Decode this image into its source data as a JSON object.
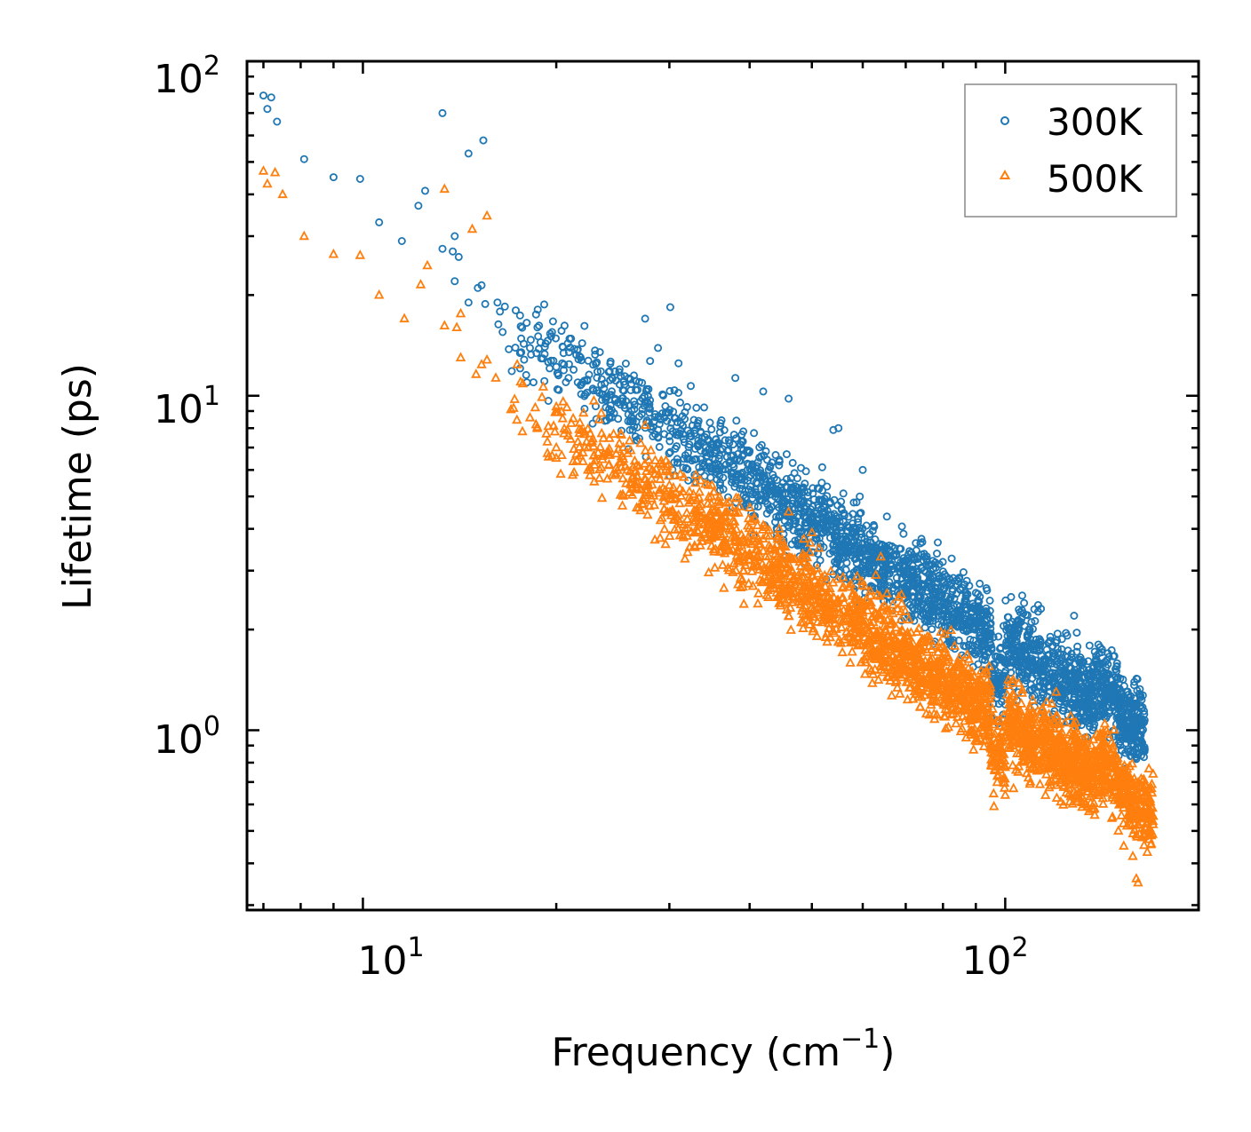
{
  "chart_data": {
    "type": "scatter",
    "title": "",
    "xlabel": "Frequency (cm",
    "xlabel_superscript": "−1",
    "xlabel_suffix": ")",
    "ylabel": "Lifetime (ps)",
    "xscale": "log",
    "yscale": "log",
    "xlim": [
      6.6,
      200
    ],
    "ylim": [
      0.29,
      100
    ],
    "x_ticks": [
      {
        "base": "10",
        "exp": "1",
        "value": 10
      },
      {
        "base": "10",
        "exp": "2",
        "value": 100
      }
    ],
    "y_ticks": [
      {
        "base": "10",
        "exp": "0",
        "value": 1
      },
      {
        "base": "10",
        "exp": "1",
        "value": 10
      },
      {
        "base": "10",
        "exp": "2",
        "value": 100
      }
    ],
    "grid": false,
    "legend_position": "top-right",
    "series": [
      {
        "name": "300K",
        "marker": "circle",
        "color": "#1f77b4",
        "points": [
          [
            7.0,
            79
          ],
          [
            7.1,
            72
          ],
          [
            7.2,
            78
          ],
          [
            7.35,
            66
          ],
          [
            8.1,
            51
          ],
          [
            9.0,
            45
          ],
          [
            9.9,
            44.5
          ],
          [
            10.6,
            33
          ],
          [
            11.5,
            29
          ],
          [
            12.2,
            37
          ],
          [
            12.5,
            41
          ],
          [
            13.3,
            70
          ],
          [
            13.3,
            27.5
          ],
          [
            13.8,
            27
          ],
          [
            13.9,
            30
          ],
          [
            14.1,
            26
          ],
          [
            13.9,
            22
          ],
          [
            14.6,
            53
          ],
          [
            15.4,
            58
          ],
          [
            14.6,
            19
          ],
          [
            15.1,
            21
          ],
          [
            15.3,
            21.4
          ],
          [
            15.5,
            18.8
          ],
          [
            16.2,
            19
          ],
          [
            16.5,
            15.5
          ],
          [
            17.3,
            18
          ],
          [
            17.8,
            14.3
          ],
          [
            18.2,
            13.9
          ],
          [
            18.6,
            17.5
          ],
          [
            18.8,
            16.2
          ],
          [
            19.4,
            14.6
          ],
          [
            20.0,
            12.2
          ],
          [
            20.6,
            16.2
          ],
          [
            20.9,
            11.3
          ],
          [
            22.2,
            10.1
          ],
          [
            22.8,
            10.5
          ],
          [
            25.1,
            10.8
          ],
          [
            26.6,
            10.4
          ],
          [
            27.5,
            17
          ],
          [
            28.8,
            13.9
          ],
          [
            28.0,
            12.7
          ],
          [
            30.1,
            18.4
          ],
          [
            31.0,
            12.5
          ],
          [
            32.4,
            10.7
          ],
          [
            38.0,
            11.3
          ],
          [
            42.0,
            10.3
          ],
          [
            46.0,
            9.8
          ],
          [
            54.0,
            7.9
          ],
          [
            55.0,
            8.0
          ],
          [
            60.0,
            6.0
          ],
          [
            107.0,
            2.4
          ],
          [
            111.0,
            2.3
          ],
          [
            128.0,
            2.2
          ],
          [
            140.0,
            1.7
          ],
          [
            160.0,
            0.82
          ]
        ],
        "trend": {
          "x_start": 16,
          "x_end": 165,
          "y_start": 17,
          "y_end": 1.0,
          "scatter_decades": 0.12
        }
      },
      {
        "name": "500K",
        "marker": "triangle",
        "color": "#ff7f0e",
        "points": [
          [
            7.0,
            47
          ],
          [
            7.1,
            43
          ],
          [
            7.3,
            46.5
          ],
          [
            7.5,
            40
          ],
          [
            8.1,
            30
          ],
          [
            9.0,
            26.5
          ],
          [
            9.9,
            26.3
          ],
          [
            10.6,
            20
          ],
          [
            11.6,
            17
          ],
          [
            12.3,
            21.5
          ],
          [
            12.6,
            24.5
          ],
          [
            13.4,
            41.5
          ],
          [
            13.4,
            16.2
          ],
          [
            14.0,
            16
          ],
          [
            14.2,
            17.6
          ],
          [
            14.2,
            13
          ],
          [
            14.8,
            31.5
          ],
          [
            15.6,
            34.5
          ],
          [
            15.0,
            11.6
          ],
          [
            15.3,
            12.4
          ],
          [
            15.6,
            12.8
          ],
          [
            16.1,
            11.3
          ],
          [
            17.0,
            9.1
          ],
          [
            17.6,
            11
          ],
          [
            18.2,
            8.6
          ],
          [
            18.6,
            8.2
          ],
          [
            19.0,
            9.9
          ],
          [
            19.3,
            7.7
          ],
          [
            20.0,
            7.0
          ],
          [
            20.5,
            9.6
          ],
          [
            21.5,
            6.7
          ],
          [
            22.4,
            6.0
          ],
          [
            23.5,
            6.1
          ],
          [
            25.8,
            6.0
          ],
          [
            30.0,
            5.4
          ],
          [
            33.0,
            5.8
          ],
          [
            46.0,
            4.5
          ],
          [
            50.0,
            3.9
          ],
          [
            64.0,
            3.3
          ],
          [
            100.0,
            0.64
          ],
          [
            103.0,
            0.67
          ],
          [
            150.0,
            0.5
          ],
          [
            158.0,
            0.42
          ],
          [
            160.0,
            0.36
          ],
          [
            161.0,
            0.35
          ]
        ],
        "trend": {
          "x_start": 17,
          "x_end": 170,
          "y_start": 10,
          "y_end": 0.55,
          "scatter_decades": 0.12
        }
      }
    ]
  }
}
